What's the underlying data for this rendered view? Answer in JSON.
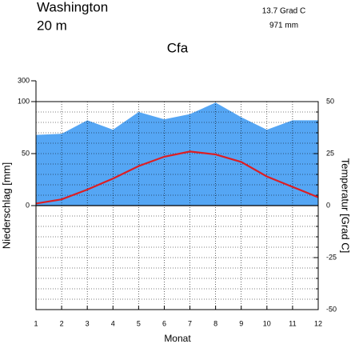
{
  "chart_data": {
    "type": "climate",
    "station": "Washington",
    "elevation": "20 m",
    "climate_class": "Cfa",
    "mean_temperature": "13.7 Grad C",
    "annual_precipitation": "971 mm",
    "xlabel": "Monat",
    "ylabel": "Niederschlag [mm]",
    "y2label": "Temperatur [Grad C]",
    "x": [
      1,
      2,
      3,
      4,
      5,
      6,
      7,
      8,
      9,
      10,
      11,
      12
    ],
    "xlim": [
      1,
      12
    ],
    "xticks": [
      1,
      2,
      3,
      4,
      5,
      6,
      7,
      8,
      9,
      10,
      11,
      12
    ],
    "series": [
      {
        "name": "Niederschlag",
        "color": "#55a6f4",
        "type": "area",
        "values": [
          68,
          69,
          82,
          73,
          90,
          83,
          88,
          99,
          85,
          73,
          82,
          82
        ]
      },
      {
        "name": "Temperatur",
        "color": "#dc1e24",
        "type": "line",
        "axis": "y2",
        "values": [
          1,
          3,
          7.7,
          13,
          19,
          23.5,
          26,
          24.6,
          21,
          14,
          9,
          4
        ]
      }
    ],
    "ylim": [
      -100,
      300
    ],
    "yticks": [
      0,
      50,
      100,
      300
    ],
    "compressed_above": 100,
    "compression": 10,
    "y2lim": [
      -50,
      50
    ],
    "y2ticks": [
      -50,
      -25,
      0,
      25,
      50
    ],
    "y2minorticks": [
      -45,
      -40,
      -35,
      -30,
      -20,
      -15,
      -10,
      -5,
      5,
      10,
      15,
      20,
      30,
      35,
      40,
      45
    ],
    "grid": true
  }
}
